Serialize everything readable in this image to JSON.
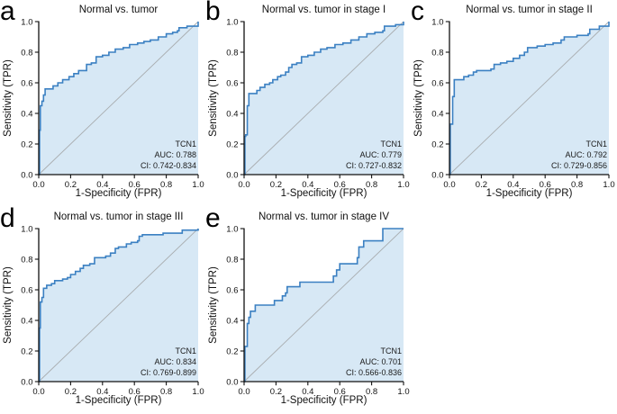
{
  "style": {
    "roc_line_color": "#3b80c2",
    "roc_fill_color": "#d7e8f5",
    "diagonal_color": "#a9adb0",
    "axis_color": "#111111",
    "text_color": "#111111"
  },
  "chart_data": [
    {
      "type": "line",
      "panel_letter": "a",
      "title": "Normal vs. tumor",
      "xlabel": "1-Specificity (FPR)",
      "ylabel": "Sensitivity (TPR)",
      "xlim": [
        0,
        1
      ],
      "ylim": [
        0,
        1
      ],
      "xticks": [
        0,
        0.2,
        0.4,
        0.6,
        0.8,
        1
      ],
      "yticks": [
        0,
        0.2,
        0.4,
        0.6,
        0.8,
        1
      ],
      "grid": false,
      "legend_position": "none",
      "reference_diagonal": true,
      "gene": "TCN1",
      "auc": 0.788,
      "ci": [
        0.742,
        0.834
      ],
      "annotations": [
        "TCN1",
        "AUC: 0.788",
        "CI: 0.742-0.834"
      ],
      "series": [
        {
          "name": "TCN1",
          "step": "after",
          "area_fill": true,
          "points": [
            [
              0,
              0
            ],
            [
              0.005,
              0.29
            ],
            [
              0.01,
              0.45
            ],
            [
              0.02,
              0.48
            ],
            [
              0.03,
              0.52
            ],
            [
              0.04,
              0.56
            ],
            [
              0.09,
              0.58
            ],
            [
              0.12,
              0.6
            ],
            [
              0.15,
              0.62
            ],
            [
              0.19,
              0.64
            ],
            [
              0.22,
              0.66
            ],
            [
              0.25,
              0.68
            ],
            [
              0.3,
              0.72
            ],
            [
              0.33,
              0.73
            ],
            [
              0.36,
              0.77
            ],
            [
              0.4,
              0.78
            ],
            [
              0.44,
              0.8
            ],
            [
              0.48,
              0.82
            ],
            [
              0.53,
              0.83
            ],
            [
              0.57,
              0.85
            ],
            [
              0.62,
              0.86
            ],
            [
              0.66,
              0.87
            ],
            [
              0.7,
              0.88
            ],
            [
              0.75,
              0.9
            ],
            [
              0.8,
              0.92
            ],
            [
              0.84,
              0.93
            ],
            [
              0.87,
              0.94
            ],
            [
              0.88,
              0.96
            ],
            [
              0.93,
              0.97
            ],
            [
              1,
              1
            ]
          ]
        }
      ]
    },
    {
      "type": "line",
      "panel_letter": "b",
      "title": "Normal vs. tumor in stage I",
      "xlabel": "1-Specificity (FPR)",
      "ylabel": "Sensitivity (TPR)",
      "xlim": [
        0,
        1
      ],
      "ylim": [
        0,
        1
      ],
      "xticks": [
        0,
        0.2,
        0.4,
        0.6,
        0.8,
        1
      ],
      "yticks": [
        0,
        0.2,
        0.4,
        0.6,
        0.8,
        1
      ],
      "grid": false,
      "legend_position": "none",
      "reference_diagonal": true,
      "gene": "TCN1",
      "auc": 0.779,
      "ci": [
        0.727,
        0.832
      ],
      "annotations": [
        "TCN1",
        "AUC: 0.779",
        "CI: 0.727-0.832"
      ],
      "series": [
        {
          "name": "TCN1",
          "step": "after",
          "area_fill": true,
          "points": [
            [
              0,
              0
            ],
            [
              0.005,
              0.25
            ],
            [
              0.01,
              0.26
            ],
            [
              0.02,
              0.45
            ],
            [
              0.03,
              0.53
            ],
            [
              0.08,
              0.55
            ],
            [
              0.1,
              0.57
            ],
            [
              0.13,
              0.59
            ],
            [
              0.16,
              0.6
            ],
            [
              0.18,
              0.62
            ],
            [
              0.21,
              0.64
            ],
            [
              0.23,
              0.65
            ],
            [
              0.26,
              0.67
            ],
            [
              0.28,
              0.7
            ],
            [
              0.3,
              0.72
            ],
            [
              0.33,
              0.73
            ],
            [
              0.36,
              0.77
            ],
            [
              0.4,
              0.78
            ],
            [
              0.44,
              0.8
            ],
            [
              0.48,
              0.82
            ],
            [
              0.52,
              0.83
            ],
            [
              0.57,
              0.85
            ],
            [
              0.62,
              0.86
            ],
            [
              0.67,
              0.88
            ],
            [
              0.72,
              0.9
            ],
            [
              0.77,
              0.92
            ],
            [
              0.82,
              0.93
            ],
            [
              0.87,
              0.94
            ],
            [
              0.88,
              0.97
            ],
            [
              0.95,
              0.98
            ],
            [
              1,
              1
            ]
          ]
        }
      ]
    },
    {
      "type": "line",
      "panel_letter": "c",
      "title": "Normal vs. tumor in stage II",
      "xlabel": "1-Specificity (FPR)",
      "ylabel": "Sensitivity (TPR)",
      "xlim": [
        0,
        1
      ],
      "ylim": [
        0,
        1
      ],
      "xticks": [
        0,
        0.2,
        0.4,
        0.6,
        0.8,
        1
      ],
      "yticks": [
        0,
        0.2,
        0.4,
        0.6,
        0.8,
        1
      ],
      "grid": false,
      "legend_position": "none",
      "reference_diagonal": true,
      "gene": "TCN1",
      "auc": 0.792,
      "ci": [
        0.729,
        0.856
      ],
      "annotations": [
        "TCN1",
        "AUC: 0.792",
        "CI: 0.729-0.856"
      ],
      "series": [
        {
          "name": "TCN1",
          "step": "after",
          "area_fill": true,
          "points": [
            [
              0,
              0
            ],
            [
              0.005,
              0.33
            ],
            [
              0.02,
              0.51
            ],
            [
              0.03,
              0.62
            ],
            [
              0.09,
              0.64
            ],
            [
              0.12,
              0.65
            ],
            [
              0.15,
              0.67
            ],
            [
              0.17,
              0.68
            ],
            [
              0.26,
              0.69
            ],
            [
              0.28,
              0.72
            ],
            [
              0.32,
              0.73
            ],
            [
              0.36,
              0.74
            ],
            [
              0.4,
              0.76
            ],
            [
              0.44,
              0.78
            ],
            [
              0.47,
              0.8
            ],
            [
              0.49,
              0.83
            ],
            [
              0.55,
              0.84
            ],
            [
              0.6,
              0.85
            ],
            [
              0.65,
              0.86
            ],
            [
              0.7,
              0.88
            ],
            [
              0.72,
              0.9
            ],
            [
              0.8,
              0.91
            ],
            [
              0.87,
              0.92
            ],
            [
              0.88,
              0.95
            ],
            [
              0.94,
              0.97
            ],
            [
              1,
              1
            ]
          ]
        }
      ]
    },
    {
      "type": "line",
      "panel_letter": "d",
      "title": "Normal vs. tumor in stage III",
      "xlabel": "1-Specificity (FPR)",
      "ylabel": "Sensitivity (TPR)",
      "xlim": [
        0,
        1
      ],
      "ylim": [
        0,
        1
      ],
      "xticks": [
        0,
        0.2,
        0.4,
        0.6,
        0.8,
        1
      ],
      "yticks": [
        0,
        0.2,
        0.4,
        0.6,
        0.8,
        1
      ],
      "grid": false,
      "legend_position": "none",
      "reference_diagonal": true,
      "gene": "TCN1",
      "auc": 0.834,
      "ci": [
        0.769,
        0.899
      ],
      "annotations": [
        "TCN1",
        "AUC: 0.834",
        "CI: 0.769-0.899"
      ],
      "series": [
        {
          "name": "TCN1",
          "step": "after",
          "area_fill": true,
          "points": [
            [
              0,
              0
            ],
            [
              0.005,
              0.35
            ],
            [
              0.01,
              0.52
            ],
            [
              0.02,
              0.55
            ],
            [
              0.03,
              0.61
            ],
            [
              0.05,
              0.63
            ],
            [
              0.08,
              0.64
            ],
            [
              0.1,
              0.66
            ],
            [
              0.15,
              0.67
            ],
            [
              0.18,
              0.68
            ],
            [
              0.2,
              0.7
            ],
            [
              0.23,
              0.72
            ],
            [
              0.26,
              0.74
            ],
            [
              0.28,
              0.76
            ],
            [
              0.32,
              0.77
            ],
            [
              0.35,
              0.81
            ],
            [
              0.42,
              0.82
            ],
            [
              0.45,
              0.84
            ],
            [
              0.48,
              0.87
            ],
            [
              0.5,
              0.88
            ],
            [
              0.55,
              0.9
            ],
            [
              0.58,
              0.91
            ],
            [
              0.62,
              0.92
            ],
            [
              0.63,
              0.95
            ],
            [
              0.65,
              0.96
            ],
            [
              0.78,
              0.97
            ],
            [
              0.9,
              0.99
            ],
            [
              1,
              1
            ]
          ]
        }
      ]
    },
    {
      "type": "line",
      "panel_letter": "e",
      "title": "Normal vs. tumor in stage IV",
      "xlabel": "1-Specificity (FPR)",
      "ylabel": "Sensitivity (TPR)",
      "xlim": [
        0,
        1
      ],
      "ylim": [
        0,
        1
      ],
      "xticks": [
        0,
        0.2,
        0.4,
        0.6,
        0.8,
        1
      ],
      "yticks": [
        0,
        0.2,
        0.4,
        0.6,
        0.8,
        1
      ],
      "grid": false,
      "legend_position": "none",
      "reference_diagonal": true,
      "gene": "TCN1",
      "auc": 0.701,
      "ci": [
        0.566,
        0.836
      ],
      "annotations": [
        "TCN1",
        "AUC: 0.701",
        "CI: 0.566-0.836"
      ],
      "series": [
        {
          "name": "TCN1",
          "step": "after",
          "area_fill": true,
          "points": [
            [
              0,
              0
            ],
            [
              0.005,
              0.23
            ],
            [
              0.02,
              0.38
            ],
            [
              0.03,
              0.42
            ],
            [
              0.04,
              0.46
            ],
            [
              0.07,
              0.5
            ],
            [
              0.19,
              0.53
            ],
            [
              0.24,
              0.56
            ],
            [
              0.26,
              0.58
            ],
            [
              0.27,
              0.62
            ],
            [
              0.35,
              0.65
            ],
            [
              0.56,
              0.69
            ],
            [
              0.58,
              0.73
            ],
            [
              0.6,
              0.77
            ],
            [
              0.71,
              0.81
            ],
            [
              0.72,
              0.88
            ],
            [
              0.75,
              0.92
            ],
            [
              0.87,
              1
            ],
            [
              1,
              1
            ]
          ]
        }
      ]
    }
  ]
}
